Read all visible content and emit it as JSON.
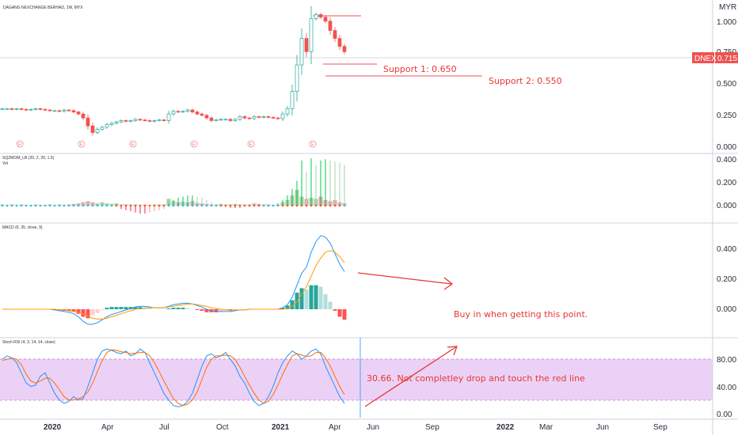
{
  "header": {
    "title": "DAGANG NEXCHANGE BERHAD, 1W, MYX",
    "currency": "MYR"
  },
  "price_badge": {
    "symbol": "DNEX",
    "price": "0.715"
  },
  "panes": {
    "price": {
      "ticks": [
        "1.000",
        "0.750",
        "0.500",
        "0.250",
        "0.000"
      ]
    },
    "sqzmom": {
      "label": "SQZMOM_LB (20, 2, 20, 1.5)",
      "vol_label": "Vol",
      "ticks": [
        "0.400",
        "0.200",
        "0.000"
      ]
    },
    "macd": {
      "label": "MACD (6, 35, close, 9)",
      "ticks": [
        "0.400",
        "0.200",
        "0.000"
      ]
    },
    "stoch": {
      "label": "Stoch RSI (4, 3, 14, 14, close)",
      "ticks": [
        "80.00",
        "40.00",
        "0.00"
      ]
    }
  },
  "x_axis": [
    "2020",
    "Apr",
    "Jul",
    "Oct",
    "2021",
    "Apr",
    "Jun",
    "Sep",
    "2022",
    "Mar",
    "Jun",
    "Sep"
  ],
  "annotations": {
    "support1": "Support 1: 0.650",
    "support2": "Support 2: 0.550",
    "macd_note": "Buy in when getting this point.",
    "stoch_note": "30.66. Not completley drop and touch the red line"
  },
  "event_markers": [
    "E",
    "E",
    "E",
    "E",
    "E",
    "E"
  ],
  "colors": {
    "up": "#26a69a",
    "down": "#ef5350",
    "macd": "#2196f3",
    "signal": "#ff9800",
    "annotation": "#e53935",
    "stoch_band": "#e1bee7"
  },
  "chart_data": [
    {
      "type": "candlestick",
      "title": "DAGANG NEXCHANGE BERHAD, 1W, MYX",
      "ylabel": "MYR",
      "ylim": [
        0,
        1.05
      ],
      "close": [
        0.29,
        0.29,
        0.285,
        0.29,
        0.285,
        0.28,
        0.285,
        0.29,
        0.285,
        0.28,
        0.275,
        0.275,
        0.27,
        0.28,
        0.275,
        0.265,
        0.25,
        0.22,
        0.16,
        0.11,
        0.135,
        0.15,
        0.17,
        0.18,
        0.19,
        0.2,
        0.195,
        0.2,
        0.21,
        0.205,
        0.2,
        0.195,
        0.2,
        0.205,
        0.2,
        0.25,
        0.27,
        0.265,
        0.27,
        0.28,
        0.265,
        0.25,
        0.24,
        0.22,
        0.2,
        0.205,
        0.21,
        0.21,
        0.2,
        0.21,
        0.23,
        0.22,
        0.215,
        0.23,
        0.225,
        0.23,
        0.225,
        0.22,
        0.215,
        0.25,
        0.29,
        0.42,
        0.62,
        0.82,
        0.72,
        0.97,
        1.0,
        0.98,
        0.95,
        0.88,
        0.82,
        0.76,
        0.72
      ],
      "levels": {
        "resistance": 1.03,
        "support1": 0.65,
        "support2": 0.55
      }
    },
    {
      "type": "bar",
      "title": "SQZMOM_LB (20, 2, 20, 1.5)",
      "ylim": [
        -0.03,
        0.42
      ],
      "momentum": [
        0,
        0,
        0,
        0,
        0,
        0,
        0,
        0,
        0,
        0,
        0,
        0,
        0,
        0,
        0,
        0,
        0,
        0,
        0,
        0,
        0,
        0,
        0,
        0,
        -0.01,
        -0.03,
        -0.04,
        -0.05,
        -0.06,
        -0.07,
        -0.07,
        -0.06,
        -0.05,
        -0.04,
        -0.03,
        0.02,
        0.05,
        0.07,
        0.08,
        0.09,
        0.09,
        0.08,
        0.07,
        0.05,
        0.03,
        0.01,
        -0.01,
        -0.01,
        -0.02,
        -0.02,
        -0.02,
        -0.01,
        -0.01,
        -0.01,
        -0.01,
        0,
        0,
        0,
        0.02,
        0.05,
        0.09,
        0.15,
        0.22,
        0.4,
        0.3,
        0.42,
        0.36,
        0.4,
        0.41,
        0.4,
        0.39,
        0.38,
        0.36
      ],
      "volume": [
        0.01,
        0.005,
        0.01,
        0.005,
        0.01,
        0.005,
        0.005,
        0.01,
        0.005,
        0.005,
        0.01,
        0.005,
        0.01,
        0.005,
        0.01,
        0.015,
        0.02,
        0.03,
        0.04,
        0.03,
        0.02,
        0.03,
        0.02,
        0.015,
        0.02,
        0.01,
        0.01,
        0.01,
        0.01,
        0.005,
        0.01,
        0.005,
        0.01,
        0.01,
        0.01,
        0.06,
        0.04,
        0.03,
        0.035,
        0.03,
        0.04,
        0.025,
        0.02,
        0.015,
        0.01,
        0.01,
        0.015,
        0.01,
        0.01,
        0.015,
        0.01,
        0.01,
        0.01,
        0.02,
        0.015,
        0.01,
        0.01,
        0.005,
        0.01,
        0.03,
        0.05,
        0.09,
        0.14,
        0.08,
        0.06,
        0.07,
        0.06,
        0.08,
        0.05,
        0.04,
        0.05,
        0.03,
        0.02
      ]
    },
    {
      "type": "line",
      "title": "MACD (6, 35, close, 9)",
      "ylim": [
        -0.1,
        0.52
      ],
      "macd": [
        0,
        0,
        0,
        0,
        0,
        0,
        0,
        0,
        0,
        0,
        0,
        -0.005,
        -0.01,
        -0.015,
        -0.02,
        -0.03,
        -0.05,
        -0.08,
        -0.1,
        -0.1,
        -0.09,
        -0.07,
        -0.05,
        -0.035,
        -0.025,
        -0.015,
        -0.005,
        0.005,
        0.015,
        0.02,
        0.02,
        0.015,
        0.01,
        0.01,
        0.01,
        0.02,
        0.03,
        0.035,
        0.04,
        0.04,
        0.035,
        0.025,
        0.015,
        0.0,
        -0.01,
        -0.015,
        -0.015,
        -0.015,
        -0.015,
        -0.01,
        -0.005,
        -0.005,
        0,
        0,
        0,
        0,
        0,
        0,
        0,
        0.01,
        0.03,
        0.08,
        0.16,
        0.24,
        0.28,
        0.38,
        0.45,
        0.49,
        0.48,
        0.44,
        0.37,
        0.3,
        0.25
      ],
      "signal": [
        0,
        0,
        0,
        0,
        0,
        0,
        0,
        0,
        0,
        0,
        0,
        0,
        -0.005,
        -0.005,
        -0.01,
        -0.015,
        -0.02,
        -0.03,
        -0.045,
        -0.06,
        -0.065,
        -0.065,
        -0.06,
        -0.05,
        -0.04,
        -0.03,
        -0.02,
        -0.01,
        0,
        0.005,
        0.01,
        0.01,
        0.01,
        0.01,
        0.01,
        0.015,
        0.02,
        0.025,
        0.03,
        0.035,
        0.035,
        0.03,
        0.025,
        0.02,
        0.01,
        0.005,
        0,
        -0.005,
        -0.005,
        -0.005,
        -0.005,
        -0.005,
        0,
        0,
        0,
        0,
        0,
        0,
        0,
        0,
        0.005,
        0.02,
        0.05,
        0.1,
        0.15,
        0.22,
        0.29,
        0.34,
        0.38,
        0.39,
        0.38,
        0.35,
        0.31
      ],
      "histogram": [
        0,
        0,
        0,
        0,
        0,
        0,
        0,
        0,
        0,
        0,
        0,
        -0.005,
        -0.005,
        -0.01,
        -0.01,
        -0.015,
        -0.03,
        -0.05,
        -0.06,
        -0.04,
        -0.025,
        -0.005,
        0.01,
        0.015,
        0.015,
        0.015,
        0.015,
        0.015,
        0.015,
        0.015,
        0.01,
        0.005,
        0,
        0,
        0,
        0.005,
        0.01,
        0.01,
        0.01,
        0.005,
        0,
        -0.005,
        -0.01,
        -0.02,
        -0.02,
        -0.02,
        -0.015,
        -0.01,
        -0.01,
        -0.005,
        0,
        0,
        0,
        0,
        0,
        0,
        0,
        0,
        0,
        0.01,
        0.025,
        0.06,
        0.11,
        0.14,
        0.13,
        0.16,
        0.16,
        0.15,
        0.1,
        0.05,
        -0.01,
        -0.05,
        -0.07
      ]
    },
    {
      "type": "line",
      "title": "Stoch RSI (4, 3, 14, 14, close)",
      "ylim": [
        0,
        100
      ],
      "band": [
        20,
        80
      ],
      "k": [
        80,
        85,
        82,
        75,
        60,
        45,
        40,
        42,
        55,
        60,
        45,
        30,
        20,
        15,
        18,
        25,
        20,
        22,
        40,
        60,
        80,
        92,
        95,
        93,
        90,
        88,
        92,
        85,
        88,
        95,
        90,
        75,
        60,
        45,
        30,
        20,
        12,
        10,
        12,
        18,
        30,
        50,
        70,
        85,
        88,
        82,
        85,
        90,
        80,
        70,
        55,
        45,
        30,
        18,
        12,
        15,
        25,
        40,
        60,
        75,
        85,
        92,
        88,
        80,
        85,
        92,
        95,
        88,
        70,
        55,
        40,
        25,
        15
      ],
      "d": [
        78,
        80,
        82,
        80,
        72,
        58,
        48,
        45,
        48,
        52,
        52,
        45,
        35,
        25,
        20,
        20,
        22,
        25,
        32,
        45,
        62,
        78,
        90,
        94,
        93,
        91,
        90,
        88,
        89,
        90,
        90,
        85,
        75,
        62,
        48,
        35,
        22,
        15,
        12,
        14,
        20,
        32,
        50,
        68,
        80,
        85,
        85,
        86,
        85,
        80,
        68,
        55,
        42,
        30,
        20,
        15,
        18,
        28,
        42,
        58,
        72,
        85,
        88,
        86,
        84,
        85,
        90,
        90,
        82,
        70,
        55,
        40,
        28
      ]
    }
  ]
}
